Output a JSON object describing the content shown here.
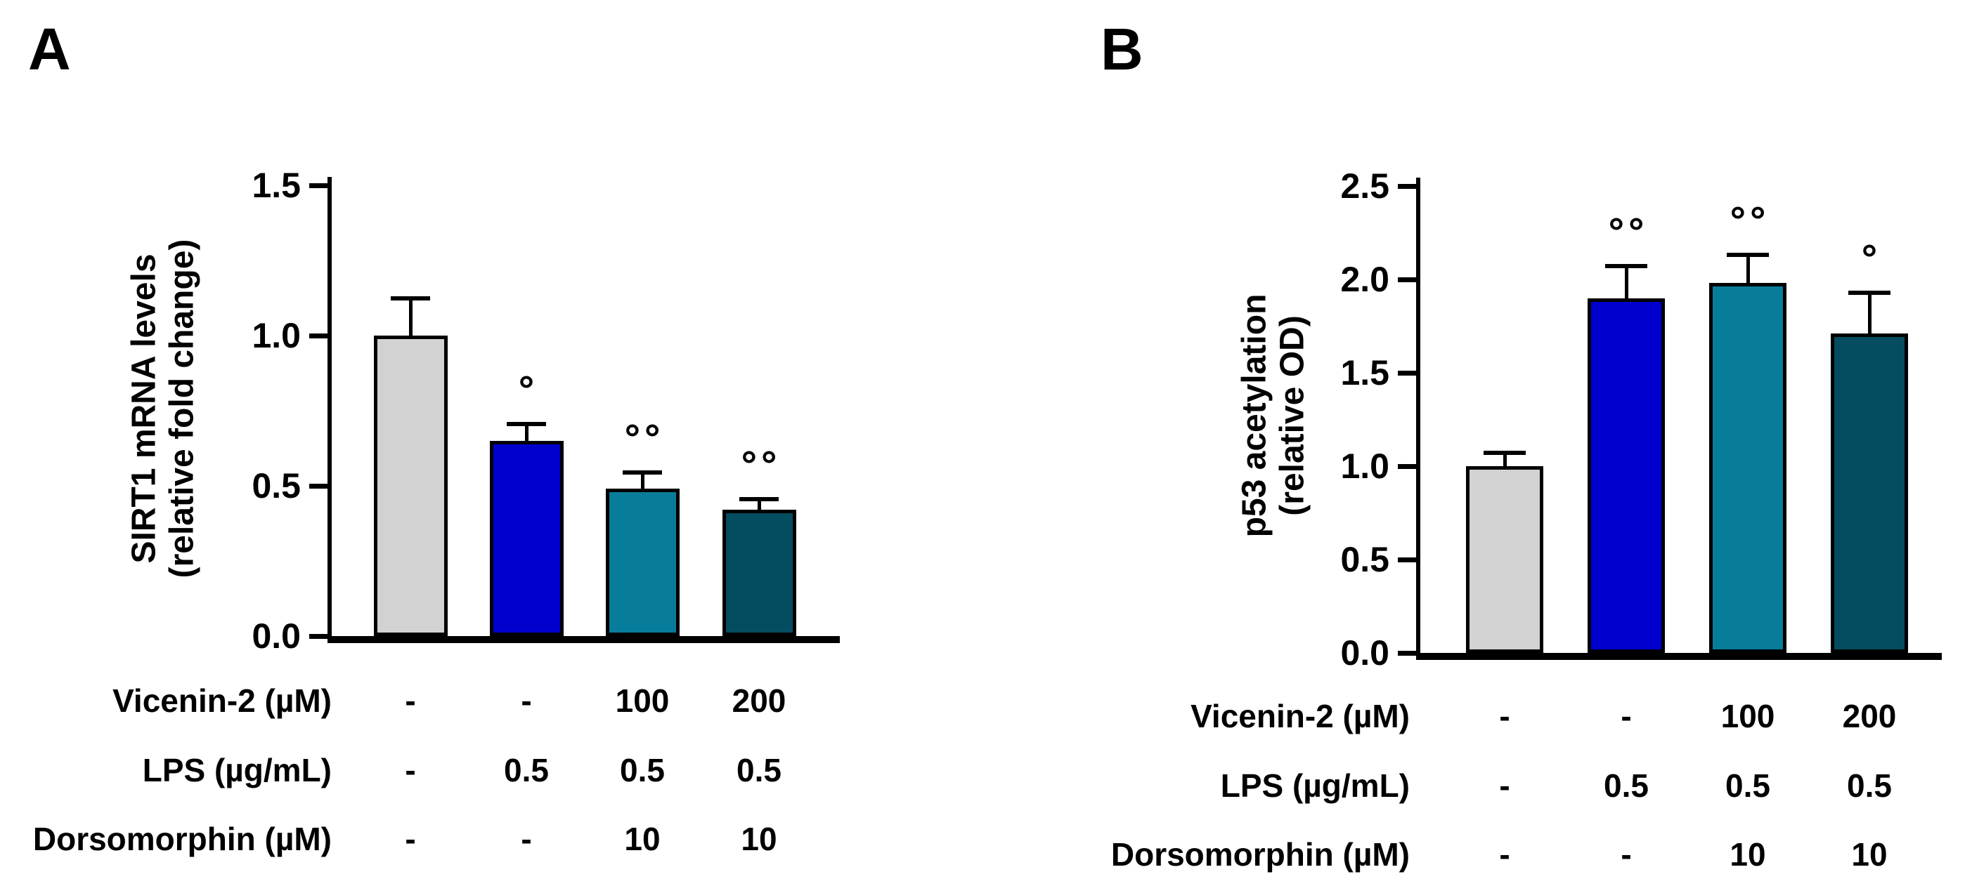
{
  "figure": {
    "background": "#ffffff",
    "axis_color": "#000000",
    "text_color": "#000000"
  },
  "chart_data": [
    {
      "type": "bar",
      "panel_label": "A",
      "title": "",
      "ylabel": "SIRT1 mRNA levels (relative fold change)",
      "ylabel_lines": [
        "SIRT1 mRNA levels",
        "(relative fold change)"
      ],
      "xlabel": "",
      "ylim": [
        0,
        1.5
      ],
      "yticks": [
        0.0,
        0.5,
        1.0,
        1.5
      ],
      "ytick_labels": [
        "0.0",
        "0.5",
        "1.0",
        "1.5"
      ],
      "grid": false,
      "legend": null,
      "values": [
        1.0,
        0.65,
        0.49,
        0.42
      ],
      "errors_sem_up": [
        0.125,
        0.056,
        0.054,
        0.035
      ],
      "annotations": [
        "",
        "°",
        "°°",
        "°°"
      ],
      "bar_colors": [
        "#d2d2d2",
        "#0000ce",
        "#087d9b",
        "#044c5f"
      ],
      "x_table": {
        "rows": [
          {
            "label": "Vicenin-2 (µM)",
            "values": [
              "-",
              "-",
              "100",
              "200"
            ]
          },
          {
            "label": "LPS (µg/mL)",
            "values": [
              "-",
              "0.5",
              "0.5",
              "0.5"
            ]
          },
          {
            "label": "Dorsomorphin (µM)",
            "values": [
              "-",
              "-",
              "10",
              "10"
            ]
          }
        ]
      }
    },
    {
      "type": "bar",
      "panel_label": "B",
      "title": "",
      "ylabel": "p53 acetylation (relative OD)",
      "ylabel_lines": [
        "p53 acetylation",
        "(relative OD)"
      ],
      "xlabel": "",
      "ylim": [
        0,
        2.5
      ],
      "yticks": [
        0.0,
        0.5,
        1.0,
        1.5,
        2.0,
        2.5
      ],
      "ytick_labels": [
        "0.0",
        "0.5",
        "1.0",
        "1.5",
        "2.0",
        "2.5"
      ],
      "grid": false,
      "legend": null,
      "values": [
        1.0,
        1.9,
        1.98,
        1.71
      ],
      "errors_sem_up": [
        0.07,
        0.17,
        0.15,
        0.22
      ],
      "annotations": [
        "",
        "°°",
        "°°",
        "°"
      ],
      "bar_colors": [
        "#d2d2d2",
        "#0000ce",
        "#087d9b",
        "#044c5f"
      ],
      "x_table": {
        "rows": [
          {
            "label": "Vicenin-2 (µM)",
            "values": [
              "-",
              "-",
              "100",
              "200"
            ]
          },
          {
            "label": "LPS (µg/mL)",
            "values": [
              "-",
              "0.5",
              "0.5",
              "0.5"
            ]
          },
          {
            "label": "Dorsomorphin (µM)",
            "values": [
              "-",
              "-",
              "10",
              "10"
            ]
          }
        ]
      }
    }
  ]
}
